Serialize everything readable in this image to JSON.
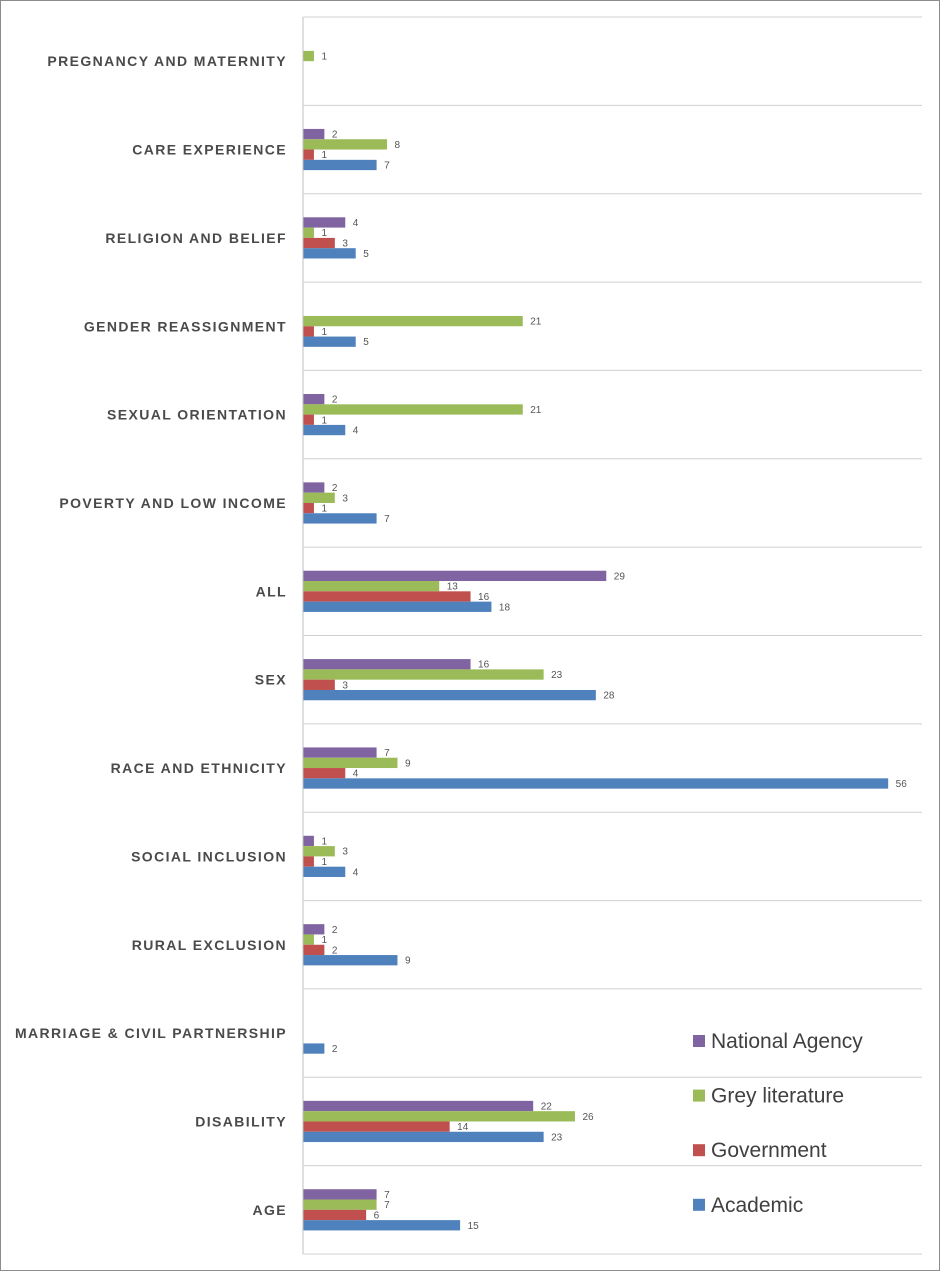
{
  "chart_data": {
    "type": "bar",
    "orientation": "horizontal",
    "categories": [
      "PREGNANCY AND MATERNITY",
      "CARE EXPERIENCE",
      "RELIGION AND BELIEF",
      "GENDER REASSIGNMENT",
      "SEXUAL ORIENTATION",
      "POVERTY AND LOW INCOME",
      "ALL",
      "SEX",
      "RACE AND ETHNICITY",
      "SOCIAL INCLUSION",
      "RURAL EXCLUSION",
      "MARRIAGE & CIVIL PARTNERSHIP",
      "DISABILITY",
      "AGE"
    ],
    "series": [
      {
        "name": "National Agency",
        "color": "#8064a2",
        "values": [
          null,
          2,
          4,
          null,
          2,
          2,
          29,
          16,
          7,
          1,
          2,
          null,
          22,
          7
        ]
      },
      {
        "name": "Grey literature",
        "color": "#9bbb59",
        "values": [
          1,
          8,
          1,
          21,
          21,
          3,
          13,
          23,
          9,
          3,
          1,
          null,
          26,
          7
        ]
      },
      {
        "name": "Government",
        "color": "#c0504d",
        "values": [
          null,
          1,
          3,
          1,
          1,
          1,
          16,
          3,
          4,
          1,
          2,
          null,
          14,
          6
        ]
      },
      {
        "name": "Academic",
        "color": "#4f81bd",
        "values": [
          null,
          7,
          5,
          5,
          4,
          7,
          18,
          28,
          56,
          4,
          9,
          2,
          23,
          15
        ]
      }
    ],
    "xlim": [
      0,
      59
    ],
    "grid": "horizontal separators between categories",
    "legend_position": "bottom-right",
    "data_labels": true
  }
}
